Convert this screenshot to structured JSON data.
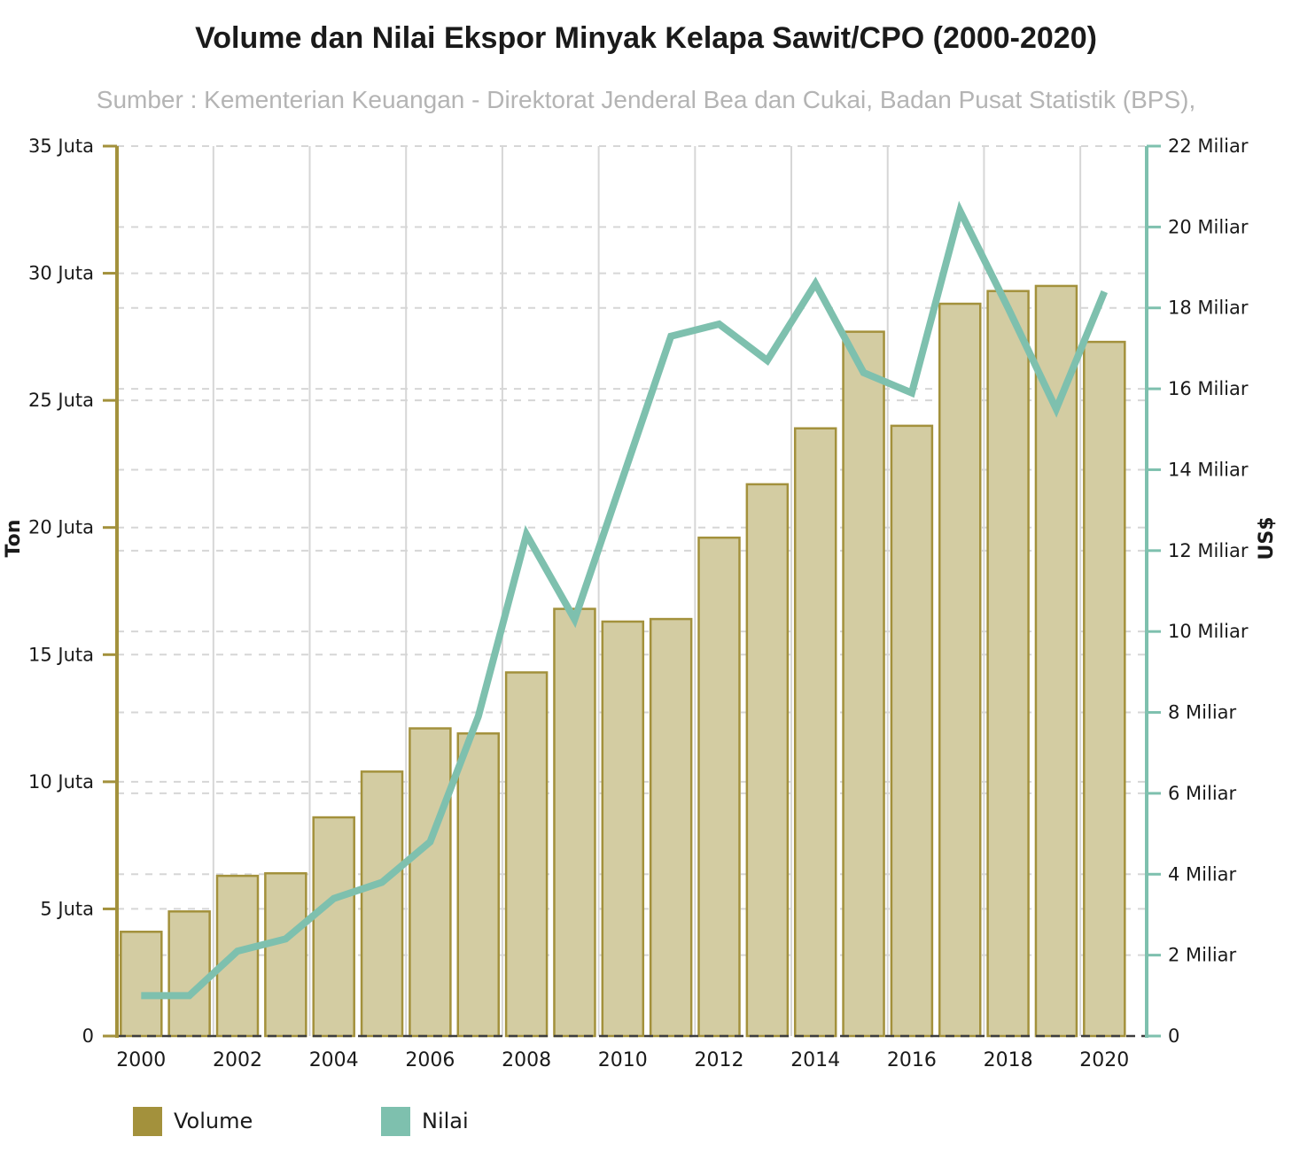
{
  "title": "Volume dan Nilai Ekspor Minyak Kelapa Sawit/CPO (2000-2020)",
  "subtitle": "Sumber : Kementerian Keuangan - Direktorat Jenderal Bea dan Cukai, Badan Pusat Statistik (BPS),",
  "colors": {
    "title_text": "#1a1a1a",
    "subtitle_text": "#b4b4b4",
    "tick_text": "#1a1a1a",
    "grid": "#d6d6d6",
    "zero_line": "#3d3d3d",
    "bar_fill": "#d3cca2",
    "bar_border": "#a3913c",
    "line": "#7ec0ae"
  },
  "chart_data": {
    "type": "combo",
    "categories": [
      "2000",
      "2001",
      "2002",
      "2003",
      "2004",
      "2005",
      "2006",
      "2007",
      "2008",
      "2009",
      "2010",
      "2011",
      "2012",
      "2013",
      "2014",
      "2015",
      "2016",
      "2017",
      "2018",
      "2019",
      "2020"
    ],
    "series": [
      {
        "name": "Volume",
        "chart_type": "bar",
        "axis": "left",
        "unit": "Juta Ton",
        "color": "#a3913c",
        "values": [
          4.1,
          4.9,
          6.3,
          6.4,
          8.6,
          10.4,
          12.1,
          11.9,
          14.3,
          16.8,
          16.3,
          16.4,
          19.6,
          21.7,
          23.9,
          27.7,
          24.0,
          28.8,
          29.3,
          29.5,
          27.3
        ]
      },
      {
        "name": "Nilai",
        "chart_type": "line",
        "axis": "right",
        "unit": "Miliar US$",
        "color": "#7ec0ae",
        "values": [
          1.0,
          1.0,
          2.1,
          2.4,
          3.4,
          3.8,
          4.8,
          7.9,
          12.4,
          10.3,
          13.8,
          17.3,
          17.6,
          16.7,
          18.6,
          16.4,
          15.9,
          20.4,
          18.0,
          15.5,
          18.4
        ]
      }
    ],
    "left_axis": {
      "title": "Ton",
      "max": 35,
      "step": 5,
      "tick_labels": [
        "0",
        "5 Juta",
        "10 Juta",
        "15 Juta",
        "20 Juta",
        "25 Juta",
        "30 Juta",
        "35 Juta"
      ]
    },
    "right_axis": {
      "title": "US$",
      "max": 22,
      "step": 2,
      "tick_labels": [
        "0",
        "2 Miliar",
        "4 Miliar",
        "6 Miliar",
        "8 Miliar",
        "10 Miliar",
        "12 Miliar",
        "14 Miliar",
        "16 Miliar",
        "18 Miliar",
        "20 Miliar",
        "22 Miliar"
      ]
    },
    "x_axis": {
      "tick_labels": [
        "2000",
        "2002",
        "2004",
        "2006",
        "2008",
        "2010",
        "2012",
        "2014",
        "2016",
        "2018",
        "2020"
      ]
    },
    "legend": [
      {
        "label": "Volume"
      },
      {
        "label": "Nilai"
      }
    ],
    "grid": true,
    "legend_position": "bottom-left"
  }
}
